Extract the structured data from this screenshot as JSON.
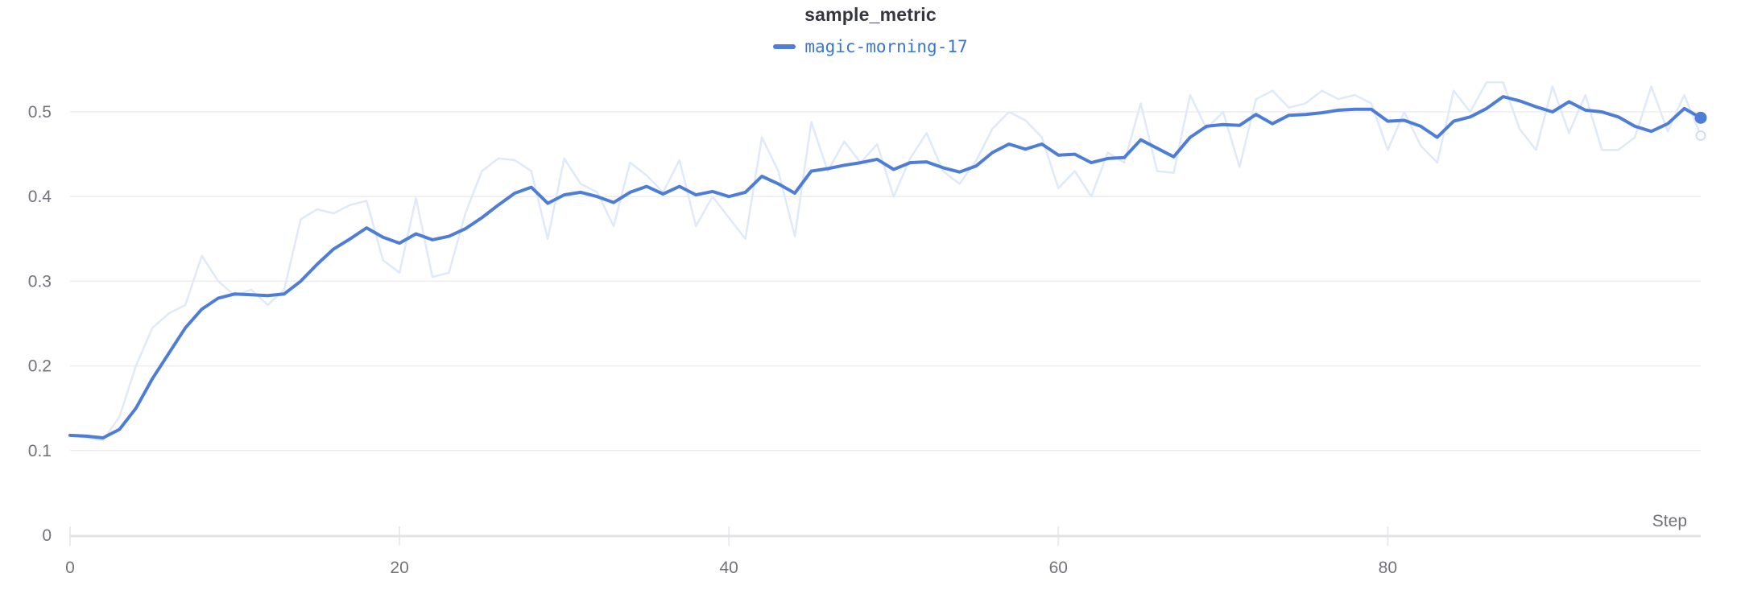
{
  "title": "sample_metric",
  "legend": {
    "series_name": "magic-morning-17"
  },
  "axes": {
    "x_label": "Step",
    "x_ticks": [
      {
        "label": "0",
        "value": 0
      },
      {
        "label": "20",
        "value": 20
      },
      {
        "label": "40",
        "value": 40
      },
      {
        "label": "60",
        "value": 60
      },
      {
        "label": "80",
        "value": 80
      }
    ],
    "y_ticks": [
      {
        "label": "0",
        "value": 0
      },
      {
        "label": "0.1",
        "value": 0.1
      },
      {
        "label": "0.2",
        "value": 0.2
      },
      {
        "label": "0.3",
        "value": 0.3
      },
      {
        "label": "0.4",
        "value": 0.4
      },
      {
        "label": "0.5",
        "value": 0.5
      }
    ]
  },
  "colors": {
    "smoothed_line": "#4d7dd6",
    "raw_line": "#dfe9fa",
    "raw_end_stroke": "#cfdef6",
    "legend_dash": "#4e7ed8",
    "legend_text": "#3b74d1",
    "title_text": "#363640",
    "tick_label": "#73737d",
    "axis_label": "#70707a",
    "gridline": "#ededf0",
    "baseline": "#e3e3e7"
  },
  "chart_data": {
    "type": "line",
    "title": "sample_metric",
    "xlabel": "Step",
    "ylabel": "",
    "x_range": [
      0,
      99
    ],
    "ylim": [
      0,
      0.556
    ],
    "y_gridlines": [
      0.1,
      0.2,
      0.3,
      0.4,
      0.5
    ],
    "grid": "horizontal-only",
    "legend_position": "top-center",
    "series": [
      {
        "name": "magic-morning-17 (original, faint)",
        "role": "raw",
        "values": [
          0.118,
          0.115,
          0.112,
          0.14,
          0.2,
          0.245,
          0.262,
          0.272,
          0.33,
          0.3,
          0.283,
          0.29,
          0.272,
          0.29,
          0.373,
          0.385,
          0.38,
          0.39,
          0.395,
          0.325,
          0.31,
          0.398,
          0.305,
          0.31,
          0.38,
          0.43,
          0.445,
          0.443,
          0.43,
          0.35,
          0.445,
          0.415,
          0.405,
          0.365,
          0.44,
          0.425,
          0.405,
          0.443,
          0.365,
          0.4,
          0.375,
          0.35,
          0.47,
          0.43,
          0.353,
          0.488,
          0.43,
          0.465,
          0.44,
          0.462,
          0.4,
          0.445,
          0.475,
          0.43,
          0.415,
          0.442,
          0.48,
          0.5,
          0.49,
          0.47,
          0.41,
          0.43,
          0.4,
          0.452,
          0.44,
          0.51,
          0.43,
          0.428,
          0.52,
          0.48,
          0.5,
          0.435,
          0.515,
          0.525,
          0.505,
          0.51,
          0.525,
          0.515,
          0.52,
          0.51,
          0.455,
          0.5,
          0.46,
          0.44,
          0.525,
          0.5,
          0.535,
          0.535,
          0.48,
          0.455,
          0.53,
          0.475,
          0.52,
          0.455,
          0.455,
          0.47,
          0.53,
          0.477,
          0.52,
          0.472
        ]
      },
      {
        "name": "magic-morning-17 (smoothed)",
        "role": "smoothed",
        "values": [
          0.118,
          0.117,
          0.115,
          0.125,
          0.15,
          0.185,
          0.215,
          0.245,
          0.267,
          0.28,
          0.285,
          0.284,
          0.283,
          0.285,
          0.3,
          0.32,
          0.338,
          0.35,
          0.363,
          0.352,
          0.345,
          0.356,
          0.349,
          0.353,
          0.362,
          0.375,
          0.39,
          0.404,
          0.411,
          0.392,
          0.402,
          0.405,
          0.4,
          0.393,
          0.405,
          0.412,
          0.403,
          0.412,
          0.402,
          0.406,
          0.4,
          0.405,
          0.424,
          0.415,
          0.404,
          0.43,
          0.433,
          0.437,
          0.44,
          0.444,
          0.432,
          0.44,
          0.441,
          0.434,
          0.429,
          0.436,
          0.452,
          0.462,
          0.456,
          0.462,
          0.449,
          0.45,
          0.44,
          0.445,
          0.446,
          0.467,
          0.457,
          0.447,
          0.47,
          0.483,
          0.485,
          0.484,
          0.497,
          0.486,
          0.496,
          0.497,
          0.499,
          0.502,
          0.503,
          0.503,
          0.489,
          0.49,
          0.483,
          0.47,
          0.489,
          0.494,
          0.504,
          0.518,
          0.513,
          0.506,
          0.5,
          0.512,
          0.502,
          0.5,
          0.494,
          0.483,
          0.477,
          0.486,
          0.504,
          0.493
        ]
      }
    ]
  }
}
